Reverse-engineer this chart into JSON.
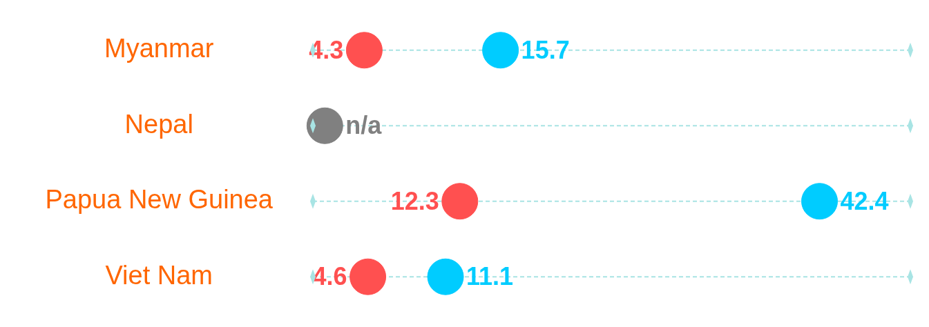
{
  "chart_data": {
    "type": "scatter",
    "orientation": "horizontal",
    "categories": [
      "Myanmar",
      "Nepal",
      "Papua New Guinea",
      "Viet Nam"
    ],
    "series": [
      {
        "color": "#ff5050",
        "values": [
          4.3,
          null,
          12.3,
          4.6
        ]
      },
      {
        "color": "#00ccff",
        "values": [
          15.7,
          null,
          42.4,
          11.1
        ]
      },
      {
        "color": "#808080",
        "values": [
          null,
          1,
          null,
          null
        ],
        "value_labels": [
          null,
          "n/a",
          null,
          null
        ]
      }
    ],
    "data_labels": true,
    "xlim": [
      0,
      50
    ],
    "tick_labels": "y",
    "grid": "y",
    "legend": false,
    "marker": "circle"
  }
}
